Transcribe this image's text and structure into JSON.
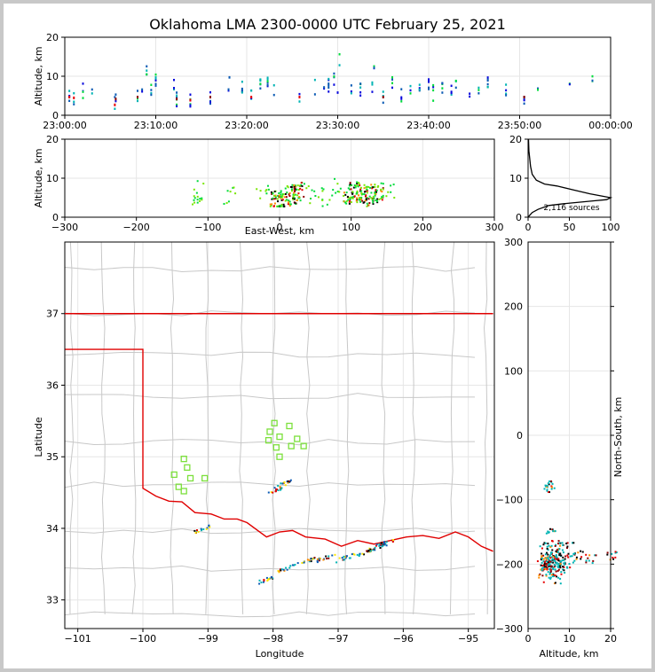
{
  "chart_data": [
    {
      "type": "scatter",
      "panel": "altitude-time",
      "title": "Oklahoma LMA 2300-0000 UTC February 25, 2021",
      "xlabel": "",
      "ylabel": "Altitude, km",
      "xlim": [
        "23:00:00",
        "00:00:00"
      ],
      "ylim": [
        0,
        20
      ],
      "x_ticks": [
        "23:00:00",
        "23:10:00",
        "23:20:00",
        "23:30:00",
        "23:40:00",
        "23:50:00",
        "00:00:00"
      ],
      "y_ticks": [
        "0",
        "10",
        "20"
      ],
      "grid": true,
      "note_points_minutes_alt": [
        [
          0.5,
          5
        ],
        [
          1,
          4.8
        ],
        [
          2,
          6.5
        ],
        [
          3,
          6.2
        ],
        [
          5.5,
          3
        ],
        [
          5.6,
          4.5
        ],
        [
          8,
          5
        ],
        [
          8.5,
          8
        ],
        [
          9,
          11
        ],
        [
          9.5,
          7
        ],
        [
          10,
          9
        ],
        [
          12,
          7.5
        ],
        [
          12.3,
          4.5
        ],
        [
          13.8,
          4.2
        ],
        [
          16,
          5
        ],
        [
          18,
          7
        ],
        [
          18.1,
          9
        ],
        [
          19.5,
          8
        ],
        [
          20.5,
          5
        ],
        [
          21.5,
          7.5
        ],
        [
          22.3,
          8
        ],
        [
          23,
          6
        ],
        [
          25.8,
          5
        ],
        [
          27.5,
          7.5
        ],
        [
          28.5,
          6.5
        ],
        [
          29,
          8
        ],
        [
          29.6,
          10
        ],
        [
          30,
          6.5
        ],
        [
          30.2,
          15
        ],
        [
          31.5,
          7
        ],
        [
          32.5,
          6.5
        ],
        [
          33.8,
          7
        ],
        [
          34,
          12
        ],
        [
          35,
          5
        ],
        [
          36,
          9
        ],
        [
          37,
          5.5
        ],
        [
          38,
          6.5
        ],
        [
          39,
          8
        ],
        [
          40,
          9
        ],
        [
          40.5,
          6
        ],
        [
          41.5,
          8
        ],
        [
          42.5,
          7
        ],
        [
          43,
          9
        ],
        [
          44.5,
          6.5
        ],
        [
          45.5,
          7.5
        ],
        [
          46.5,
          8.5
        ],
        [
          48.5,
          7
        ],
        [
          50.5,
          5
        ],
        [
          52,
          6
        ],
        [
          55.5,
          6.5
        ],
        [
          58,
          9.5
        ]
      ]
    },
    {
      "type": "scatter",
      "panel": "altitude-eastwest",
      "xlabel": "East-West, km",
      "ylabel": "Altitude, km",
      "xlim": [
        -300,
        300
      ],
      "ylim": [
        0,
        20
      ],
      "x_ticks": [
        "−300",
        "−200",
        "−100",
        "0",
        "100",
        "200",
        "300"
      ],
      "y_ticks": [
        "0",
        "10",
        "20"
      ],
      "grid": true,
      "clusters_x_alt": [
        [
          -118,
          6
        ],
        [
          -112,
          7
        ],
        [
          -70,
          5.5
        ],
        [
          -25,
          6
        ],
        [
          -5,
          5
        ],
        [
          5,
          4.5
        ],
        [
          15,
          6
        ],
        [
          25,
          7
        ],
        [
          45,
          6
        ],
        [
          60,
          5.5
        ],
        [
          80,
          8
        ],
        [
          95,
          6
        ],
        [
          105,
          7
        ],
        [
          115,
          6
        ],
        [
          125,
          5.5
        ],
        [
          135,
          6.5
        ],
        [
          150,
          7
        ]
      ]
    },
    {
      "type": "line",
      "panel": "altitude-histogram",
      "xlim": [
        0,
        100
      ],
      "ylim": [
        0,
        20
      ],
      "x_ticks": [
        "0",
        "50",
        "100"
      ],
      "y_ticks": [
        "0",
        "10",
        "20"
      ],
      "annotation": "2,116 sources",
      "profile_count_alt": [
        [
          0,
          0
        ],
        [
          2,
          0.5
        ],
        [
          5,
          1.2
        ],
        [
          12,
          2
        ],
        [
          25,
          3
        ],
        [
          45,
          3.5
        ],
        [
          80,
          4.2
        ],
        [
          95,
          4.5
        ],
        [
          100,
          5
        ],
        [
          75,
          6
        ],
        [
          55,
          7
        ],
        [
          35,
          8
        ],
        [
          20,
          8.5
        ],
        [
          10,
          9.5
        ],
        [
          5,
          11
        ],
        [
          3,
          13
        ],
        [
          2,
          15
        ],
        [
          1,
          17
        ],
        [
          0.5,
          20
        ]
      ]
    },
    {
      "type": "scatter",
      "panel": "plan-view-map",
      "xlabel": "Longitude",
      "ylabel": "Latitude",
      "xlim": [
        -101.2,
        -94.6
      ],
      "ylim": [
        32.6,
        38
      ],
      "x_ticks": [
        "−101",
        "−100",
        "−99",
        "−98",
        "−97",
        "−96",
        "−95"
      ],
      "y_ticks": [
        "33",
        "34",
        "35",
        "36",
        "37"
      ],
      "grid": true,
      "stations_lon_lat": [
        [
          -97.98,
          35.47
        ],
        [
          -97.75,
          35.43
        ],
        [
          -98.05,
          35.35
        ],
        [
          -97.9,
          35.28
        ],
        [
          -98.07,
          35.23
        ],
        [
          -97.63,
          35.25
        ],
        [
          -97.53,
          35.15
        ],
        [
          -97.95,
          35.13
        ],
        [
          -97.72,
          35.15
        ],
        [
          -97.9,
          35.0
        ],
        [
          -99.37,
          34.97
        ],
        [
          -99.32,
          34.85
        ],
        [
          -99.52,
          34.75
        ],
        [
          -99.27,
          34.7
        ],
        [
          -99.05,
          34.7
        ],
        [
          -99.45,
          34.58
        ],
        [
          -99.37,
          34.52
        ]
      ],
      "source_clusters_lon_lat": [
        [
          -99.1,
          34.0
        ],
        [
          -97.95,
          34.55
        ],
        [
          -97.85,
          34.63
        ],
        [
          -98.1,
          33.3
        ],
        [
          -97.8,
          33.45
        ],
        [
          -97.5,
          33.55
        ],
        [
          -97.2,
          33.6
        ],
        [
          -96.9,
          33.6
        ],
        [
          -96.6,
          33.67
        ],
        [
          -96.4,
          33.75
        ],
        [
          -96.3,
          33.8
        ]
      ]
    },
    {
      "type": "scatter",
      "panel": "northsouth-altitude",
      "xlabel": "Altitude, km",
      "ylabel": "North-South, km",
      "xlim": [
        0,
        20
      ],
      "ylim": [
        -300,
        300
      ],
      "x_ticks": [
        "0",
        "10",
        "20"
      ],
      "y_ticks": [
        "−300",
        "−200",
        "−100",
        "0",
        "100",
        "200",
        "300"
      ],
      "grid": true,
      "clusters_alt_ns": [
        [
          4.5,
          -75
        ],
        [
          5,
          -80
        ],
        [
          5.5,
          -145
        ],
        [
          6,
          -180
        ],
        [
          5,
          -190
        ],
        [
          7,
          -195
        ],
        [
          9,
          -185
        ],
        [
          4.5,
          -200
        ],
        [
          6,
          -210
        ],
        [
          12,
          -185
        ],
        [
          15,
          -190
        ],
        [
          20,
          -185
        ]
      ]
    }
  ]
}
